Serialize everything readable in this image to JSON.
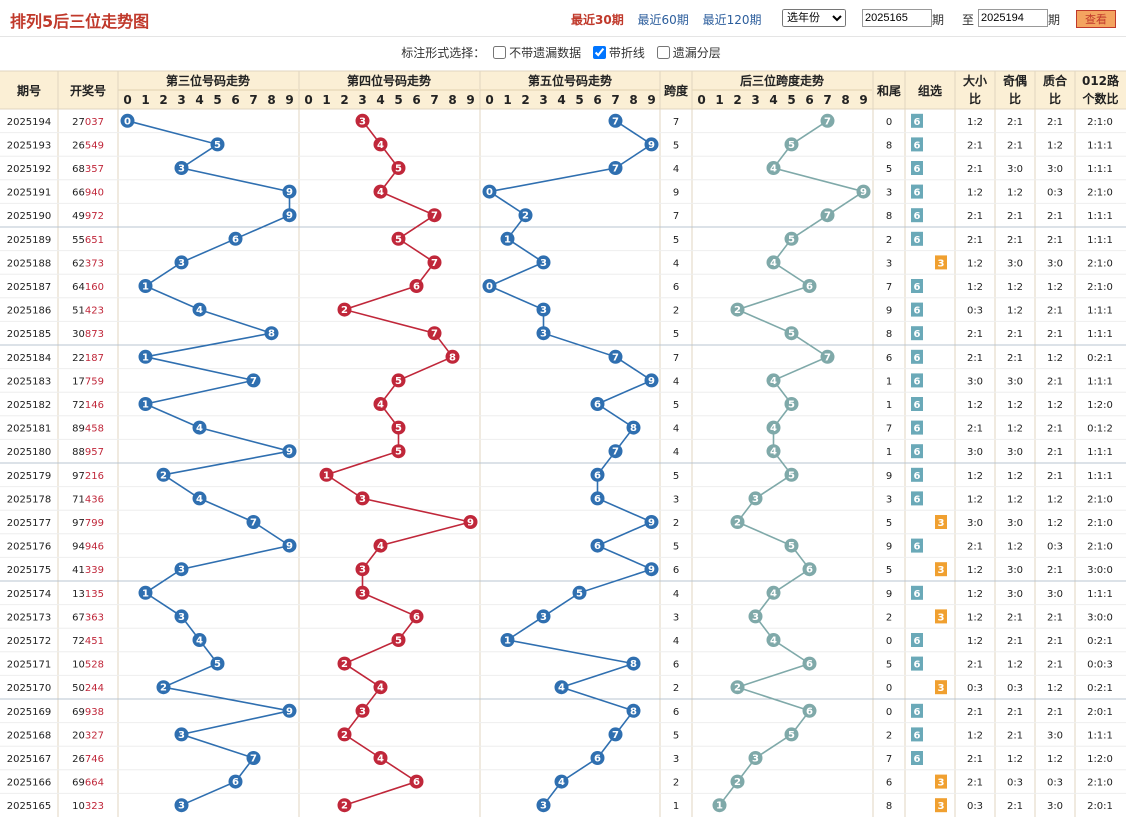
{
  "title": "排列5后三位走势图",
  "ranges": [
    "最近30期",
    "最近60期",
    "最近120期"
  ],
  "active_range": 0,
  "year_select": "选年份",
  "from_period": "2025165",
  "to_period": "2025194",
  "period_label": "期",
  "to_label": "至",
  "view_button": "查看",
  "options": {
    "label": "标注形式选择：",
    "items": [
      {
        "label": "不带遗漏数据",
        "checked": false
      },
      {
        "label": "带折线",
        "checked": true
      },
      {
        "label": "遗漏分层",
        "checked": false
      }
    ]
  },
  "headers": {
    "period": "期号",
    "draw": "开奖号",
    "pos3": "第三位号码走势",
    "pos4": "第四位号码走势",
    "pos5": "第五位号码走势",
    "span": "跨度",
    "span_trend": "后三位跨度走势",
    "sum_tail": "和尾",
    "group": "组选",
    "big_small": [
      "大小",
      "比"
    ],
    "odd_even": [
      "奇偶",
      "比"
    ],
    "prime": [
      "质合",
      "比"
    ],
    "road": [
      "012路",
      "个数比"
    ],
    "digits": [
      "0",
      "1",
      "2",
      "3",
      "4",
      "5",
      "6",
      "7",
      "8",
      "9"
    ]
  },
  "colors": {
    "pos3": "#2f6fb0",
    "pos4": "#c0273a",
    "pos5": "#2f6fb0",
    "span": "#7fa9a9",
    "group": "#6aa9b8",
    "group3": "#f0a030"
  },
  "rows": [
    {
      "p": "2025194",
      "n": "27037",
      "d": [
        0,
        3,
        7
      ],
      "s": "7",
      "st": "0",
      "g": "6",
      "bs": "1:2",
      "oe": "2:1",
      "pc": "2:1",
      "r": "2:1:0"
    },
    {
      "p": "2025193",
      "n": "26549",
      "d": [
        5,
        4,
        9
      ],
      "s": "5",
      "st": "8",
      "g": "6",
      "bs": "2:1",
      "oe": "2:1",
      "pc": "1:2",
      "r": "1:1:1"
    },
    {
      "p": "2025192",
      "n": "68357",
      "d": [
        3,
        5,
        7
      ],
      "s": "4",
      "st": "5",
      "g": "6",
      "bs": "2:1",
      "oe": "3:0",
      "pc": "3:0",
      "r": "1:1:1"
    },
    {
      "p": "2025191",
      "n": "66940",
      "d": [
        9,
        4,
        0
      ],
      "s": "9",
      "st": "3",
      "g": "6",
      "bs": "1:2",
      "oe": "1:2",
      "pc": "0:3",
      "r": "2:1:0"
    },
    {
      "p": "2025190",
      "n": "49972",
      "d": [
        9,
        7,
        2
      ],
      "s": "7",
      "st": "8",
      "g": "6",
      "bs": "2:1",
      "oe": "2:1",
      "pc": "2:1",
      "r": "1:1:1"
    },
    {
      "p": "2025189",
      "n": "55651",
      "d": [
        6,
        5,
        1
      ],
      "s": "5",
      "st": "2",
      "g": "6",
      "bs": "2:1",
      "oe": "2:1",
      "pc": "2:1",
      "r": "1:1:1"
    },
    {
      "p": "2025188",
      "n": "62373",
      "d": [
        3,
        7,
        3
      ],
      "s": "4",
      "st": "3",
      "g": "3",
      "bs": "1:2",
      "oe": "3:0",
      "pc": "3:0",
      "r": "2:1:0"
    },
    {
      "p": "2025187",
      "n": "64160",
      "d": [
        1,
        6,
        0
      ],
      "s": "6",
      "st": "7",
      "g": "6",
      "bs": "1:2",
      "oe": "1:2",
      "pc": "1:2",
      "r": "2:1:0"
    },
    {
      "p": "2025186",
      "n": "51423",
      "d": [
        4,
        2,
        3
      ],
      "s": "2",
      "st": "9",
      "g": "6",
      "bs": "0:3",
      "oe": "1:2",
      "pc": "2:1",
      "r": "1:1:1"
    },
    {
      "p": "2025185",
      "n": "30873",
      "d": [
        8,
        7,
        3
      ],
      "s": "5",
      "st": "8",
      "g": "6",
      "bs": "2:1",
      "oe": "2:1",
      "pc": "2:1",
      "r": "1:1:1"
    },
    {
      "p": "2025184",
      "n": "22187",
      "d": [
        1,
        8,
        7
      ],
      "s": "7",
      "st": "6",
      "g": "6",
      "bs": "2:1",
      "oe": "2:1",
      "pc": "1:2",
      "r": "0:2:1"
    },
    {
      "p": "2025183",
      "n": "17759",
      "d": [
        7,
        5,
        9
      ],
      "s": "4",
      "st": "1",
      "g": "6",
      "bs": "3:0",
      "oe": "3:0",
      "pc": "2:1",
      "r": "1:1:1"
    },
    {
      "p": "2025182",
      "n": "72146",
      "d": [
        1,
        4,
        6
      ],
      "s": "5",
      "st": "1",
      "g": "6",
      "bs": "1:2",
      "oe": "1:2",
      "pc": "1:2",
      "r": "1:2:0"
    },
    {
      "p": "2025181",
      "n": "89458",
      "d": [
        4,
        5,
        8
      ],
      "s": "4",
      "st": "7",
      "g": "6",
      "bs": "2:1",
      "oe": "1:2",
      "pc": "2:1",
      "r": "0:1:2"
    },
    {
      "p": "2025180",
      "n": "88957",
      "d": [
        9,
        5,
        7
      ],
      "s": "4",
      "st": "1",
      "g": "6",
      "bs": "3:0",
      "oe": "3:0",
      "pc": "2:1",
      "r": "1:1:1"
    },
    {
      "p": "2025179",
      "n": "97216",
      "d": [
        2,
        1,
        6
      ],
      "s": "5",
      "st": "9",
      "g": "6",
      "bs": "1:2",
      "oe": "1:2",
      "pc": "2:1",
      "r": "1:1:1"
    },
    {
      "p": "2025178",
      "n": "71436",
      "d": [
        4,
        3,
        6
      ],
      "s": "3",
      "st": "3",
      "g": "6",
      "bs": "1:2",
      "oe": "1:2",
      "pc": "1:2",
      "r": "2:1:0"
    },
    {
      "p": "2025177",
      "n": "97799",
      "d": [
        7,
        9,
        9
      ],
      "s": "2",
      "st": "5",
      "g": "3",
      "bs": "3:0",
      "oe": "3:0",
      "pc": "1:2",
      "r": "2:1:0"
    },
    {
      "p": "2025176",
      "n": "94946",
      "d": [
        9,
        4,
        6
      ],
      "s": "5",
      "st": "9",
      "g": "6",
      "bs": "2:1",
      "oe": "1:2",
      "pc": "0:3",
      "r": "2:1:0"
    },
    {
      "p": "2025175",
      "n": "41339",
      "d": [
        3,
        3,
        9
      ],
      "s": "6",
      "st": "5",
      "g": "3",
      "bs": "1:2",
      "oe": "3:0",
      "pc": "2:1",
      "r": "3:0:0"
    },
    {
      "p": "2025174",
      "n": "13135",
      "d": [
        1,
        3,
        5
      ],
      "s": "4",
      "st": "9",
      "g": "6",
      "bs": "1:2",
      "oe": "3:0",
      "pc": "3:0",
      "r": "1:1:1"
    },
    {
      "p": "2025173",
      "n": "67363",
      "d": [
        3,
        6,
        3
      ],
      "s": "3",
      "st": "2",
      "g": "3",
      "bs": "1:2",
      "oe": "2:1",
      "pc": "2:1",
      "r": "3:0:0"
    },
    {
      "p": "2025172",
      "n": "72451",
      "d": [
        4,
        5,
        1
      ],
      "s": "4",
      "st": "0",
      "g": "6",
      "bs": "1:2",
      "oe": "2:1",
      "pc": "2:1",
      "r": "0:2:1"
    },
    {
      "p": "2025171",
      "n": "10528",
      "d": [
        5,
        2,
        8
      ],
      "s": "6",
      "st": "5",
      "g": "6",
      "bs": "2:1",
      "oe": "1:2",
      "pc": "2:1",
      "r": "0:0:3"
    },
    {
      "p": "2025170",
      "n": "50244",
      "d": [
        2,
        4,
        4
      ],
      "s": "2",
      "st": "0",
      "g": "3",
      "bs": "0:3",
      "oe": "0:3",
      "pc": "1:2",
      "r": "0:2:1"
    },
    {
      "p": "2025169",
      "n": "69938",
      "d": [
        9,
        3,
        8
      ],
      "s": "6",
      "st": "0",
      "g": "6",
      "bs": "2:1",
      "oe": "2:1",
      "pc": "2:1",
      "r": "2:0:1"
    },
    {
      "p": "2025168",
      "n": "20327",
      "d": [
        3,
        2,
        7
      ],
      "s": "5",
      "st": "2",
      "g": "6",
      "bs": "1:2",
      "oe": "2:1",
      "pc": "3:0",
      "r": "1:1:1"
    },
    {
      "p": "2025167",
      "n": "26746",
      "d": [
        7,
        4,
        6
      ],
      "s": "3",
      "st": "7",
      "g": "6",
      "bs": "2:1",
      "oe": "1:2",
      "pc": "1:2",
      "r": "1:2:0"
    },
    {
      "p": "2025166",
      "n": "69664",
      "d": [
        6,
        6,
        4
      ],
      "s": "2",
      "st": "6",
      "g": "3",
      "bs": "2:1",
      "oe": "0:3",
      "pc": "0:3",
      "r": "2:1:0"
    },
    {
      "p": "2025165",
      "n": "10323",
      "d": [
        3,
        2,
        3
      ],
      "s": "1",
      "st": "8",
      "g": "3",
      "bs": "0:3",
      "oe": "2:1",
      "pc": "3:0",
      "r": "2:0:1"
    }
  ]
}
